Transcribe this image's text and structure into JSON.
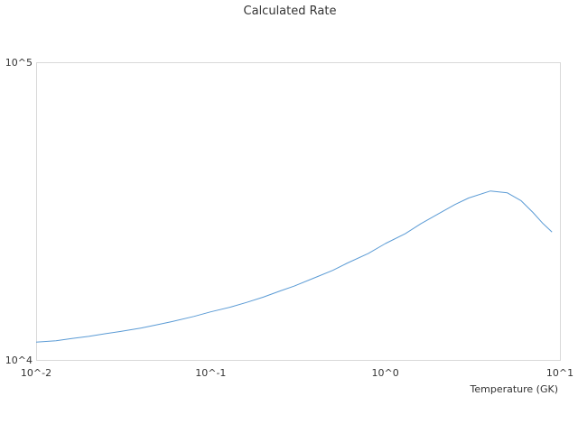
{
  "chart_data": {
    "type": "line",
    "title": "Calculated Rate",
    "xlabel": "Temperature (GK)",
    "ylabel": "",
    "xscale": "log",
    "yscale": "log",
    "xlim": [
      0.01,
      10
    ],
    "ylim": [
      10000,
      100000
    ],
    "x_ticks": [
      "10^-2",
      "10^-1",
      "10^0",
      "10^1"
    ],
    "y_ticks": [
      "10^4",
      "10^5"
    ],
    "grid": false,
    "legend": "none",
    "series": [
      {
        "color": "#5b9bd5",
        "x": [
          0.01,
          0.013,
          0.016,
          0.02,
          0.025,
          0.03,
          0.04,
          0.05,
          0.06,
          0.08,
          0.1,
          0.13,
          0.16,
          0.2,
          0.25,
          0.3,
          0.4,
          0.5,
          0.6,
          0.8,
          1.0,
          1.3,
          1.6,
          2.0,
          2.5,
          3.0,
          4.0,
          5.0,
          6.0,
          7.0,
          8.0,
          9.0
        ],
        "y": [
          11480,
          11600,
          11800,
          12000,
          12250,
          12450,
          12800,
          13150,
          13450,
          14000,
          14500,
          15050,
          15600,
          16250,
          17050,
          17700,
          18950,
          20000,
          21100,
          22800,
          24600,
          26550,
          28700,
          30900,
          33250,
          35000,
          36950,
          36400,
          34250,
          31300,
          28700,
          26900
        ]
      }
    ]
  }
}
